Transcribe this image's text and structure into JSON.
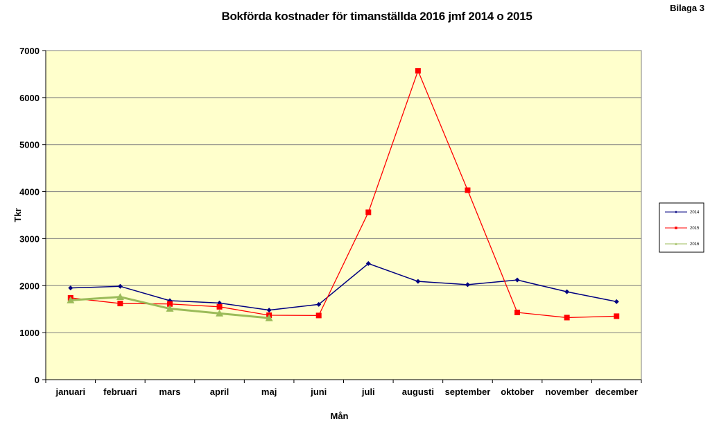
{
  "header": {
    "corner_label": "Bilaga 3"
  },
  "chart_data": {
    "type": "line",
    "title": "Bokförda kostnader för timanställda 2016 jmf 2014 o 2015",
    "xlabel": "Mån",
    "ylabel": "Tkr",
    "ylim": [
      0,
      7000
    ],
    "yticks": [
      0,
      1000,
      2000,
      3000,
      4000,
      5000,
      6000,
      7000
    ],
    "categories": [
      "januari",
      "februari",
      "mars",
      "april",
      "maj",
      "juni",
      "juli",
      "augusti",
      "september",
      "oktober",
      "november",
      "december"
    ],
    "grid": "horizontal",
    "legend_position": "right",
    "series": [
      {
        "name": "2014",
        "color": "#000080",
        "marker": "diamond",
        "values": [
          1950,
          1985,
          1680,
          1630,
          1480,
          1600,
          2470,
          2090,
          2020,
          2120,
          1870,
          1660
        ]
      },
      {
        "name": "2015",
        "color": "#ff0000",
        "marker": "square",
        "values": [
          1740,
          1620,
          1610,
          1550,
          1370,
          1365,
          3560,
          6570,
          4030,
          1430,
          1320,
          1350
        ]
      },
      {
        "name": "2016",
        "color": "#9bbb59",
        "marker": "triangle",
        "values": [
          1690,
          1760,
          1510,
          1410,
          1310,
          null,
          null,
          null,
          null,
          null,
          null,
          null
        ]
      }
    ],
    "plot_background": "#ffffcc"
  }
}
